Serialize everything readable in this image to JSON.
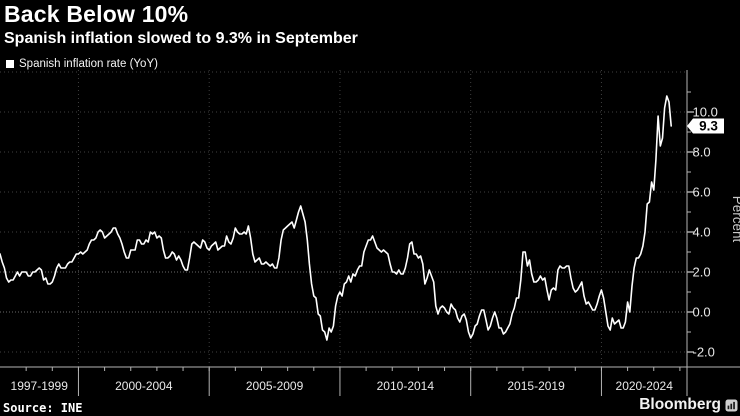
{
  "header": {
    "title": "Back Below 10%",
    "subtitle": "Spanish inflation slowed to 9.3% in September"
  },
  "legend": {
    "swatch_color": "#ffffff",
    "label": "Spanish inflation rate (YoY)"
  },
  "source": {
    "text": "Source: INE"
  },
  "branding": {
    "name": "Bloomberg",
    "icon": "bar-chart-terminal-icon"
  },
  "chart_data": {
    "type": "line",
    "title": "Back Below 10%",
    "subtitle": "Spanish inflation slowed to 9.3% in September",
    "xlabel": "",
    "ylabel": "Percent",
    "ylim": [
      -2.75,
      12.1
    ],
    "grid": "dotted",
    "legend_position": "top-left",
    "end_label": "9.3",
    "colors": {
      "background": "#000000",
      "line": "#ffffff",
      "grid": "#3f3f3f",
      "grid_emphasis": "#6a6a6a",
      "axis": "#b3b3b3",
      "tick_label": "#e8e8e8",
      "axis_title": "#c9c9c9",
      "badge_bg": "#ffffff",
      "badge_text": "#000000"
    },
    "y_ticks": [
      {
        "value": 10,
        "label": "10.0"
      },
      {
        "value": 8,
        "label": "8.0"
      },
      {
        "value": 6,
        "label": "6.0"
      },
      {
        "value": 4,
        "label": "4.0"
      },
      {
        "value": 2,
        "label": "2.0"
      },
      {
        "value": 0,
        "label": "0.0"
      },
      {
        "value": -2,
        "label": "-2.0"
      }
    ],
    "y_gridlines": [
      12,
      10,
      8,
      6,
      4,
      2,
      0,
      -2
    ],
    "y_grid_emphasis": [
      2,
      0
    ],
    "y_minor_ticks": [
      11,
      9,
      7,
      5,
      3,
      1,
      -1
    ],
    "x_sections": [
      {
        "label": "1997-1999",
        "from": 1997,
        "to": 2000
      },
      {
        "label": "2000-2004",
        "from": 2000,
        "to": 2005
      },
      {
        "label": "2005-2009",
        "from": 2005,
        "to": 2010
      },
      {
        "label": "2010-2014",
        "from": 2010,
        "to": 2015
      },
      {
        "label": "2015-2019",
        "from": 2015,
        "to": 2020
      },
      {
        "label": "2020-2024",
        "from": 2020,
        "to": null
      }
    ],
    "series": [
      {
        "name": "Spanish inflation rate (YoY)",
        "color": "#ffffff",
        "start": "1997-01",
        "end": "2022-09",
        "frequency": "monthly",
        "values": [
          2.9,
          2.5,
          2.2,
          1.7,
          1.5,
          1.6,
          1.6,
          1.8,
          2.0,
          1.8,
          2.0,
          2.0,
          2.0,
          1.8,
          1.8,
          2.0,
          2.0,
          2.1,
          2.2,
          2.1,
          1.6,
          1.7,
          1.4,
          1.4,
          1.5,
          1.8,
          2.2,
          2.4,
          2.2,
          2.2,
          2.2,
          2.4,
          2.5,
          2.5,
          2.7,
          2.9,
          2.9,
          3.0,
          2.9,
          3.0,
          3.1,
          3.4,
          3.6,
          3.6,
          3.7,
          4.0,
          4.1,
          4.0,
          3.7,
          3.8,
          3.9,
          4.0,
          4.2,
          4.2,
          3.9,
          3.7,
          3.4,
          3.0,
          2.7,
          2.7,
          3.1,
          3.1,
          3.1,
          3.6,
          3.6,
          3.4,
          3.4,
          3.6,
          3.5,
          4.0,
          3.9,
          4.0,
          3.7,
          3.8,
          3.7,
          3.1,
          2.7,
          2.7,
          2.8,
          3.0,
          2.9,
          2.6,
          2.8,
          2.6,
          2.3,
          2.1,
          2.1,
          2.7,
          3.4,
          3.5,
          3.4,
          3.3,
          3.2,
          3.6,
          3.5,
          3.2,
          3.1,
          3.3,
          3.4,
          3.5,
          3.1,
          3.2,
          3.3,
          3.3,
          3.8,
          3.5,
          3.4,
          3.7,
          4.2,
          4.0,
          3.9,
          3.9,
          4.0,
          3.9,
          4.3,
          3.7,
          2.9,
          2.5,
          2.6,
          2.7,
          2.4,
          2.4,
          2.5,
          2.4,
          2.3,
          2.4,
          2.2,
          2.2,
          2.7,
          3.6,
          4.1,
          4.2,
          4.3,
          4.4,
          4.5,
          4.2,
          4.6,
          5.0,
          5.3,
          4.9,
          4.5,
          3.6,
          2.4,
          1.4,
          0.8,
          0.7,
          -0.1,
          -0.2,
          -0.9,
          -1.0,
          -1.4,
          -0.8,
          -1.0,
          -0.7,
          0.3,
          0.8,
          1.0,
          0.8,
          1.4,
          1.5,
          1.8,
          1.5,
          1.9,
          1.8,
          2.1,
          2.3,
          2.3,
          3.0,
          3.3,
          3.6,
          3.6,
          3.8,
          3.5,
          3.2,
          3.1,
          3.0,
          3.1,
          3.0,
          2.9,
          2.4,
          2.0,
          2.0,
          1.9,
          2.1,
          1.9,
          1.9,
          2.2,
          2.7,
          3.4,
          3.5,
          2.9,
          2.9,
          2.7,
          2.8,
          2.4,
          1.4,
          1.7,
          2.1,
          1.8,
          1.5,
          0.3,
          -0.1,
          0.2,
          0.3,
          0.2,
          0.0,
          -0.1,
          0.4,
          0.2,
          0.1,
          -0.3,
          -0.5,
          -0.2,
          -0.1,
          -0.4,
          -1.0,
          -1.3,
          -1.1,
          -0.7,
          -0.6,
          -0.2,
          0.1,
          0.1,
          -0.4,
          -0.9,
          -0.7,
          -0.3,
          0.0,
          -0.3,
          -0.8,
          -0.8,
          -1.1,
          -1.0,
          -0.8,
          -0.6,
          -0.1,
          0.2,
          0.7,
          0.7,
          1.6,
          3.0,
          3.0,
          2.3,
          2.6,
          1.9,
          1.5,
          1.5,
          1.6,
          1.8,
          1.6,
          1.7,
          1.1,
          0.6,
          1.1,
          1.2,
          1.1,
          2.1,
          2.3,
          2.2,
          2.2,
          2.3,
          2.3,
          1.7,
          1.2,
          1.0,
          1.1,
          1.3,
          1.5,
          0.8,
          0.4,
          0.5,
          0.3,
          0.1,
          0.1,
          0.4,
          0.8,
          1.1,
          0.7,
          0.0,
          -0.7,
          -0.9,
          -0.3,
          -0.6,
          -0.5,
          -0.4,
          -0.8,
          -0.8,
          -0.5,
          0.5,
          0.0,
          1.3,
          2.2,
          2.7,
          2.7,
          2.9,
          3.3,
          4.0,
          5.4,
          5.5,
          6.5,
          6.1,
          7.6,
          9.8,
          8.3,
          8.7,
          10.2,
          10.8,
          10.5,
          9.3
        ]
      }
    ]
  }
}
